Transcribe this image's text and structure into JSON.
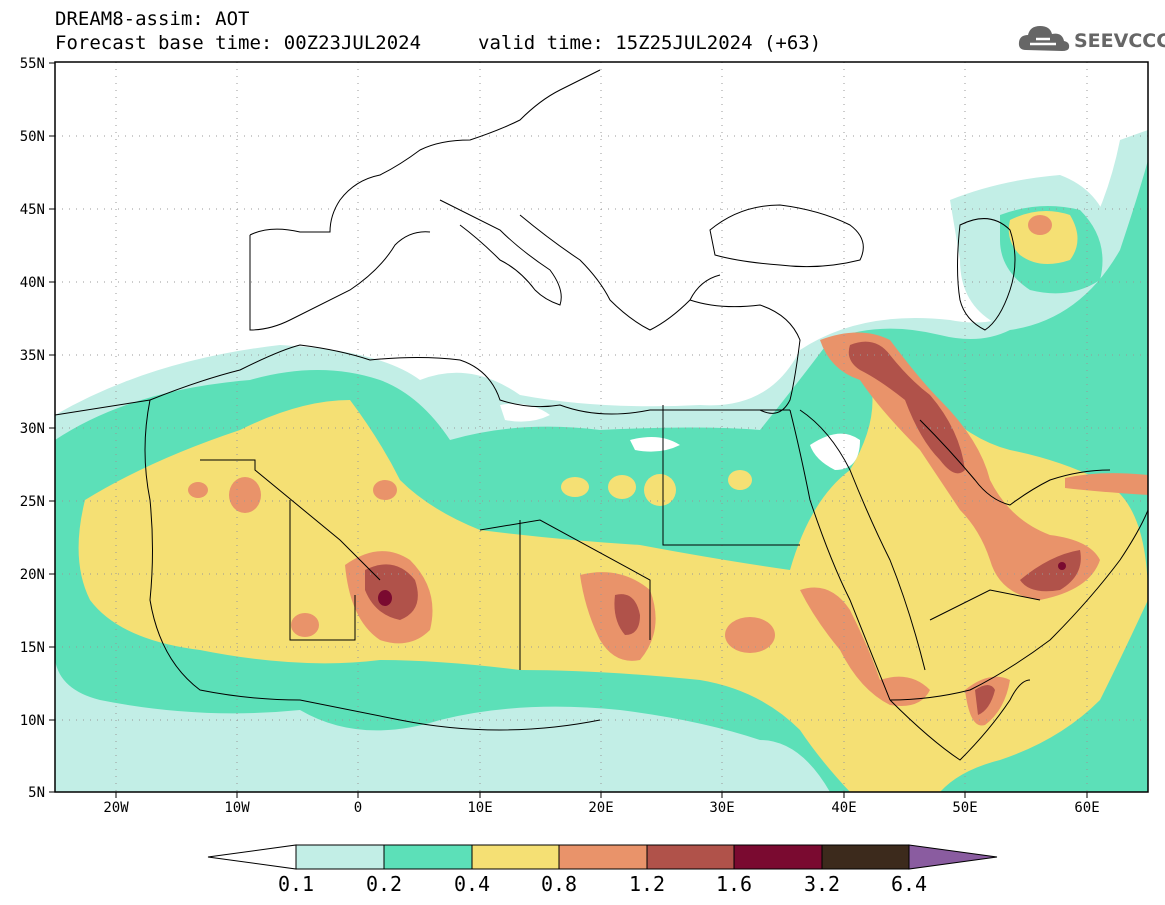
{
  "header": {
    "model_line": "DREAM8-assim: AOT",
    "base_time": "Forecast base time: 00Z23JUL2024",
    "valid_time": "valid time: 15Z25JUL2024 (+63)",
    "logo": "SEEVCCC"
  },
  "map": {
    "lat_labels": [
      "55N",
      "50N",
      "45N",
      "40N",
      "35N",
      "30N",
      "25N",
      "20N",
      "15N",
      "10N",
      "5N"
    ],
    "lon_labels": [
      "20W",
      "10W",
      "0",
      "10E",
      "20E",
      "30E",
      "40E",
      "50E",
      "60E"
    ]
  },
  "legend": {
    "levels": [
      "0.1",
      "0.2",
      "0.4",
      "0.8",
      "1.2",
      "1.6",
      "3.2",
      "6.4"
    ],
    "colors": [
      "#c2eee6",
      "#5ce0b8",
      "#f5e074",
      "#e9936a",
      "#b0524a",
      "#7a0a30",
      "#3c2a1c",
      "#8a5ca0"
    ]
  }
}
